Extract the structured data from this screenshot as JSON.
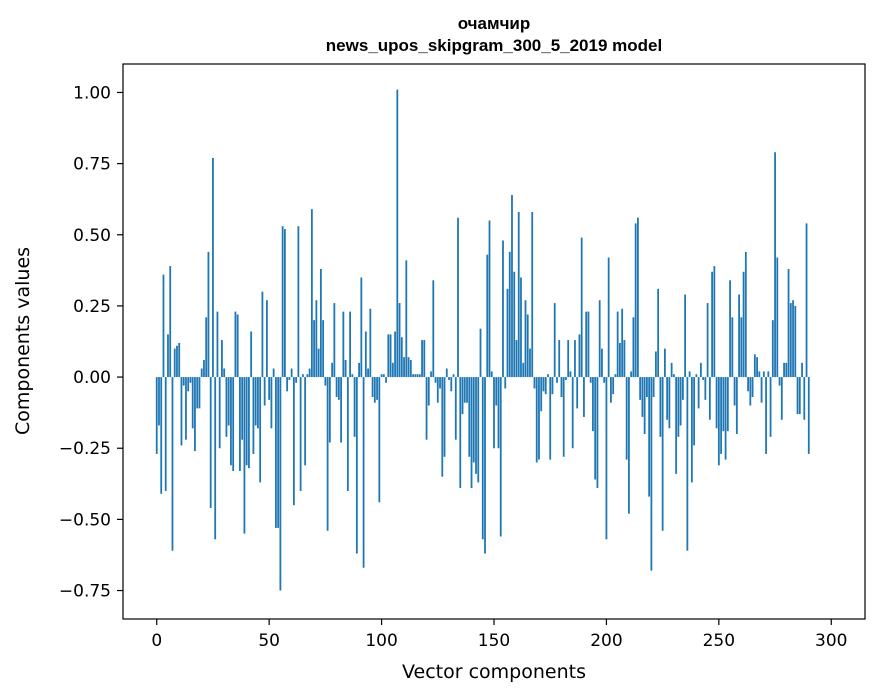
{
  "chart_data": {
    "type": "bar",
    "title": "очамчир",
    "subtitle": "news_upos_skipgram_300_5_2019 model",
    "xlabel": "Vector components",
    "ylabel": "Components values",
    "xlim": [
      -15,
      315
    ],
    "ylim": [
      -0.85,
      1.1
    ],
    "xticks": [
      0,
      50,
      100,
      150,
      200,
      250,
      300
    ],
    "xtick_labels": [
      "0",
      "50",
      "100",
      "150",
      "200",
      "250",
      "300"
    ],
    "yticks": [
      -0.75,
      -0.5,
      -0.25,
      0.0,
      0.25,
      0.5,
      0.75,
      1.0
    ],
    "ytick_labels": [
      "−0.75",
      "−0.50",
      "−0.25",
      "0.00",
      "0.25",
      "0.50",
      "0.75",
      "1.00"
    ],
    "grid": false,
    "color": "#1f77b4",
    "values": [
      -0.27,
      -0.17,
      -0.41,
      0.36,
      -0.4,
      0.15,
      0.39,
      -0.61,
      0.1,
      0.11,
      0.12,
      -0.24,
      -0.03,
      -0.22,
      -0.05,
      -0.02,
      -0.18,
      -0.26,
      -0.11,
      -0.11,
      0.03,
      0.06,
      0.21,
      0.44,
      -0.46,
      0.77,
      -0.57,
      0.23,
      -0.25,
      0.13,
      0.03,
      -0.21,
      -0.17,
      -0.31,
      -0.33,
      0.23,
      0.22,
      -0.33,
      -0.22,
      -0.55,
      -0.31,
      -0.32,
      0.16,
      -0.27,
      -0.17,
      -0.18,
      -0.37,
      0.3,
      -0.1,
      0.27,
      -0.08,
      -0.18,
      0.03,
      -0.53,
      -0.53,
      -0.75,
      0.53,
      0.52,
      -0.05,
      -0.01,
      0.03,
      -0.45,
      -0.02,
      0.53,
      -0.4,
      0.01,
      -0.31,
      0.01,
      0.03,
      0.59,
      0.2,
      0.27,
      0.1,
      0.38,
      0.2,
      -0.03,
      -0.54,
      -0.23,
      0.05,
      0.26,
      -0.07,
      -0.08,
      -0.23,
      0.23,
      0.06,
      -0.4,
      0.23,
      0.01,
      -0.21,
      -0.62,
      0.05,
      0.35,
      -0.67,
      0.16,
      0.03,
      0.24,
      -0.07,
      -0.09,
      -0.08,
      -0.44,
      0.01,
      0.01,
      -0.02,
      0.15,
      0.15,
      0.05,
      0.16,
      1.01,
      0.26,
      0.14,
      0.07,
      0.41,
      0.07,
      0.06,
      0.01,
      0.01,
      0.01,
      0.01,
      0.13,
      0.13,
      -0.22,
      -0.1,
      0.02,
      0.34,
      -0.02,
      -0.09,
      -0.04,
      -0.35,
      -0.28,
      0.03,
      -0.01,
      -0.05,
      0.01,
      -0.22,
      0.56,
      -0.39,
      -0.13,
      -0.09,
      -0.09,
      -0.28,
      -0.39,
      -0.3,
      -0.34,
      -0.37,
      0.17,
      -0.57,
      -0.62,
      0.43,
      0.55,
      0.02,
      -0.25,
      -0.1,
      -0.25,
      -0.56,
      0.48,
      -0.04,
      0.31,
      0.44,
      0.64,
      0.37,
      0.13,
      0.58,
      0.35,
      0.05,
      0.27,
      0.22,
      0.1,
      0.58,
      -0.04,
      -0.3,
      -0.29,
      -0.12,
      -0.05,
      -0.06,
      0.01,
      -0.29,
      -0.06,
      0.26,
      -0.02,
      0.13,
      -0.07,
      -0.28,
      -0.01,
      0.13,
      0.02,
      -0.25,
      0.13,
      -0.11,
      0.15,
      0.49,
      -0.14,
      0.23,
      0.23,
      -0.02,
      -0.19,
      -0.36,
      -0.39,
      0.27,
      0.1,
      -0.02,
      -0.57,
      0.42,
      -0.09,
      -0.06,
      0.01,
      0.23,
      0.12,
      0.24,
      0.13,
      -0.29,
      -0.48,
      0.02,
      0.21,
      0.54,
      0.56,
      -0.08,
      -0.14,
      -0.2,
      -0.07,
      -0.42,
      -0.68,
      -0.07,
      0.09,
      0.31,
      -0.21,
      -0.54,
      0.1,
      -0.15,
      -0.18,
      0.05,
      0.01,
      -0.34,
      -0.21,
      -0.17,
      -0.08,
      0.29,
      -0.61,
      0.02,
      -0.37,
      -0.24,
      0.01,
      -0.11,
      0.05,
      -0.01,
      -0.08,
      0.26,
      -0.15,
      0.37,
      0.39,
      -0.18,
      -0.31,
      -0.27,
      -0.19,
      -0.29,
      -0.19,
      0.34,
      0.21,
      -0.1,
      -0.2,
      0.29,
      0.21,
      0.37,
      0.44,
      -0.05,
      -0.1,
      -0.07,
      0.08,
      0.07,
      0.02,
      -0.09,
      0.02,
      -0.27,
      0.02,
      -0.21,
      0.2,
      0.79,
      0.42,
      -0.03,
      -0.15,
      0.05,
      0.05,
      0.38,
      0.26,
      0.27,
      0.25,
      -0.13,
      -0.13,
      0.05,
      -0.15,
      0.54,
      -0.27
    ]
  }
}
